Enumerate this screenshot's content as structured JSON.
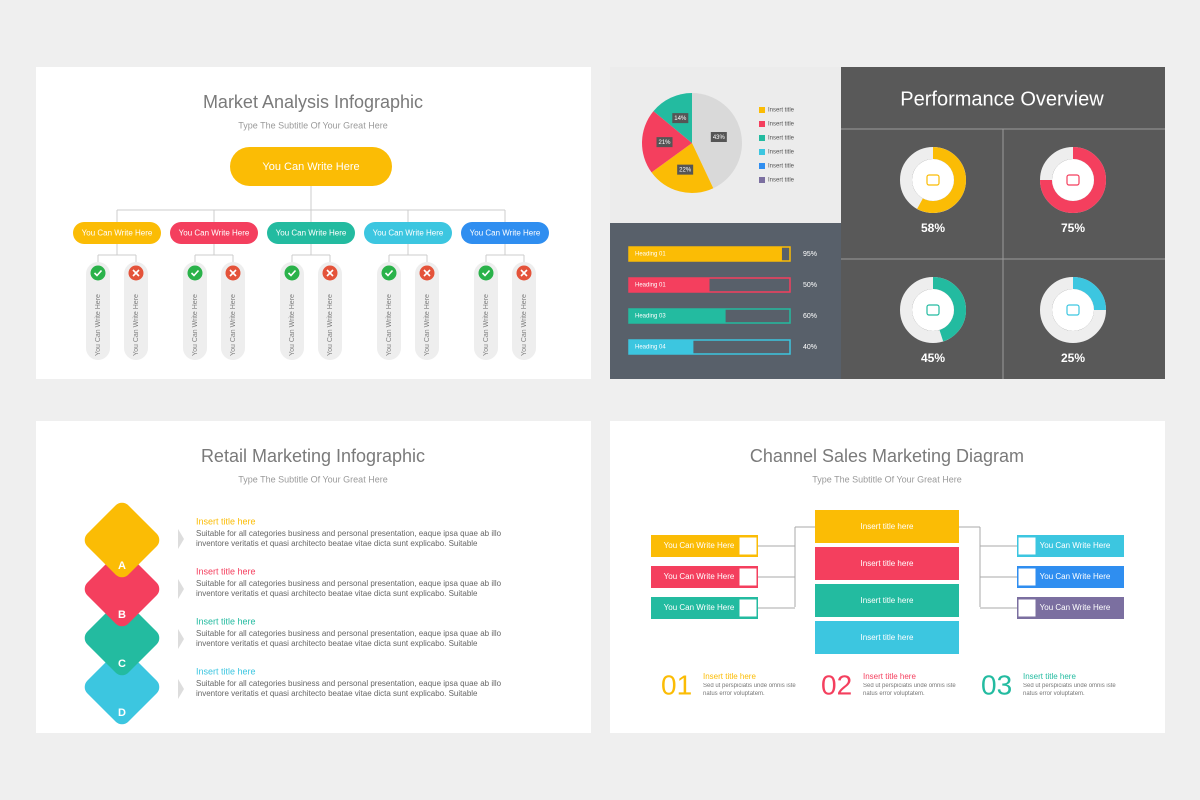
{
  "market_analysis": {
    "title": "Market Analysis Infographic",
    "subtitle": "Type The Subtitle Of Your Great Here",
    "root": "You Can Write Here",
    "branches": [
      {
        "label": "You Can Write Here",
        "items": [
          "You Can Write Here",
          "You Can Write Here"
        ]
      },
      {
        "label": "You Can Write Here",
        "items": [
          "You Can Write Here",
          "You Can Write Here"
        ]
      },
      {
        "label": "You Can Write Here",
        "items": [
          "You Can Write Here",
          "You Can Write Here"
        ]
      },
      {
        "label": "You Can Write Here",
        "items": [
          "You Can Write Here",
          "You Can Write Here"
        ]
      },
      {
        "label": "You Can Write Here",
        "items": [
          "You Can Write Here",
          "You Can Write Here"
        ]
      }
    ]
  },
  "chart_data": [
    {
      "type": "pie",
      "values": [
        43,
        22,
        21,
        14
      ],
      "value_labels": [
        "43%",
        "22%",
        "21%",
        "14%"
      ],
      "colors": [
        "#d9d9d9",
        "#fbbc05",
        "#f43f5e",
        "#23bba0"
      ],
      "legend": [
        {
          "name": "Insert title",
          "color": "#fbbc05"
        },
        {
          "name": "Insert title",
          "color": "#f43f5e"
        },
        {
          "name": "Insert title",
          "color": "#23bba0"
        },
        {
          "name": "Insert title",
          "color": "#3cc6e0"
        },
        {
          "name": "Insert title",
          "color": "#2f8ef0"
        },
        {
          "name": "Insert title",
          "color": "#7b6fa0"
        }
      ]
    },
    {
      "type": "bar",
      "orientation": "horizontal",
      "categories": [
        "Heading 01",
        "Heading 01",
        "Heading 03",
        "Heading 04"
      ],
      "values": [
        95,
        50,
        60,
        40
      ],
      "value_labels": [
        "95%",
        "50%",
        "60%",
        "40%"
      ],
      "colors": [
        "#fbbc05",
        "#f43f5e",
        "#23bba0",
        "#3cc6e0"
      ],
      "xlim": [
        0,
        100
      ]
    },
    {
      "type": "donut",
      "title": "Performance Overview",
      "values": [
        58,
        75,
        45,
        25
      ],
      "value_labels": [
        "58%",
        "75%",
        "45%",
        "25%"
      ],
      "colors": [
        "#fbbc05",
        "#f43f5e",
        "#23bba0",
        "#3cc6e0"
      ]
    }
  ],
  "retail": {
    "title": "Retail Marketing Infographic",
    "subtitle": "Type The Subtitle Of Your Great Here",
    "items": [
      {
        "letter": "A",
        "title": "Insert title here",
        "text": "Suitable for all categories business and personal presentation, eaque ipsa quae ab illo inventore veritatis et quasi architecto beatae vitae dicta sunt explicabo. Suitable"
      },
      {
        "letter": "B",
        "title": "Insert title here",
        "text": "Suitable for all categories business and personal presentation, eaque ipsa quae ab illo inventore veritatis et quasi architecto beatae vitae dicta sunt explicabo. Suitable"
      },
      {
        "letter": "C",
        "title": "Insert title here",
        "text": "Suitable for all categories business and personal presentation, eaque ipsa quae ab illo inventore veritatis et quasi architecto beatae vitae dicta sunt explicabo. Suitable"
      },
      {
        "letter": "D",
        "title": "Insert title here",
        "text": "Suitable for all categories business and personal presentation, eaque ipsa quae ab illo inventore veritatis et quasi architecto beatae vitae dicta sunt explicabo. Suitable"
      }
    ]
  },
  "channel": {
    "title": "Channel Sales Marketing Diagram",
    "subtitle": "Type The Subtitle Of Your Great Here",
    "left": [
      "You Can Write Here",
      "You Can Write Here",
      "You Can Write Here"
    ],
    "center": [
      "Insert title here",
      "Insert title here",
      "Insert title here",
      "Insert title here"
    ],
    "right": [
      "You Can Write Here",
      "You Can Write Here",
      "You Can Write Here"
    ],
    "steps": [
      {
        "number": "01",
        "title": "Insert title here",
        "text": "Sed ut perspiciatis unde omnis iste natus error voluptatem."
      },
      {
        "number": "02",
        "title": "Insert title here",
        "text": "Sed ut perspiciatis unde omnis iste natus error voluptatem."
      },
      {
        "number": "03",
        "title": "Insert title here",
        "text": "Sed ut perspiciatis unde omnis iste natus error voluptatem."
      }
    ]
  }
}
